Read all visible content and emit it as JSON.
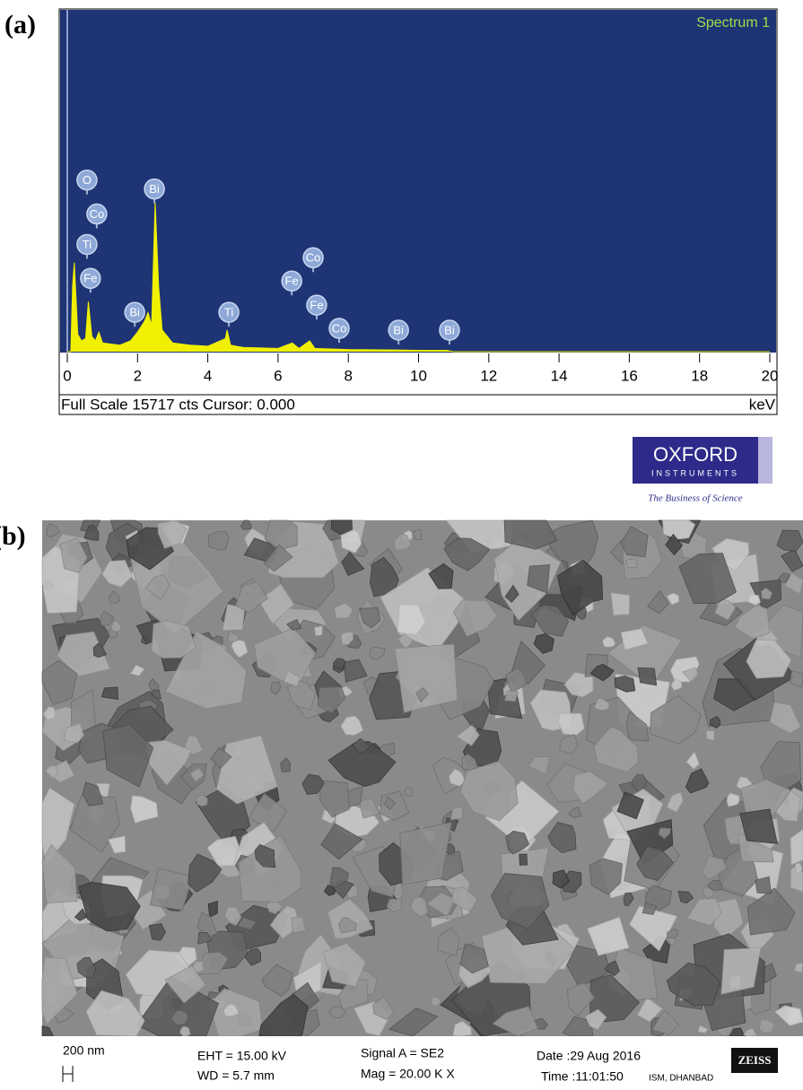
{
  "chart_data": {
    "type": "area",
    "panel_label": "(a)",
    "title": "Spectrum 1",
    "x": [
      0,
      0.1,
      0.15,
      0.2,
      0.3,
      0.4,
      0.52,
      0.6,
      0.7,
      0.8,
      0.9,
      1.0,
      1.5,
      1.8,
      2.0,
      2.2,
      2.3,
      2.4,
      2.5,
      2.6,
      2.7,
      3.0,
      3.5,
      4.0,
      4.5,
      4.55,
      4.65,
      5.0,
      6.0,
      6.4,
      6.6,
      6.9,
      7.05,
      7.6,
      8.0,
      9.4,
      10.0,
      10.8,
      11.0,
      20
    ],
    "values": [
      0,
      0,
      3000,
      4100,
      800,
      500,
      600,
      2300,
      700,
      500,
      900,
      400,
      300,
      500,
      900,
      1400,
      1800,
      1200,
      6870,
      3000,
      1000,
      400,
      300,
      250,
      600,
      1000,
      300,
      200,
      150,
      400,
      150,
      500,
      150,
      120,
      100,
      80,
      60,
      60,
      0,
      0
    ],
    "color": "#f0f000",
    "background": "#1e3475",
    "xlim": [
      0,
      20
    ],
    "xticks": [
      0,
      2,
      4,
      6,
      8,
      10,
      12,
      14,
      16,
      18,
      20
    ],
    "ylim": [
      0,
      15717
    ],
    "footer": "Full Scale 15717 cts Cursor: 0.000",
    "x_unit": "keV",
    "annotations": [
      {
        "text": "O",
        "x": 0.56,
        "y": 7890
      },
      {
        "text": "Co",
        "x": 0.84,
        "y": 6330
      },
      {
        "text": "Ti",
        "x": 0.56,
        "y": 4930
      },
      {
        "text": "Fe",
        "x": 0.66,
        "y": 3370
      },
      {
        "text": "Bi",
        "x": 2.48,
        "y": 7480
      },
      {
        "text": "Bi",
        "x": 1.92,
        "y": 1810
      },
      {
        "text": "Ti",
        "x": 4.6,
        "y": 1810
      },
      {
        "text": "Co",
        "x": 7.0,
        "y": 4320
      },
      {
        "text": "Fe",
        "x": 6.39,
        "y": 3250
      },
      {
        "text": "Fe",
        "x": 7.1,
        "y": 2140
      },
      {
        "text": "Co",
        "x": 7.74,
        "y": 1070
      },
      {
        "text": "Bi",
        "x": 9.43,
        "y": 990
      },
      {
        "text": "Bi",
        "x": 10.88,
        "y": 990
      }
    ]
  },
  "logo": {
    "name": "OXFORD",
    "sub": "INSTRUMENTS",
    "tagline": "The Business of Science"
  },
  "panel_b": {
    "label": "(b)",
    "scale": "200 nm",
    "eht": "EHT = 15.00 kV",
    "wd": "WD =  5.7 mm",
    "signal": "Signal A = SE2",
    "mag": "Mag =  20.00 K X",
    "date": "Date :29 Aug 2016",
    "time": "Time :11:01:50",
    "site": "ISM, DHANBAD",
    "brand": "ZEISS"
  }
}
